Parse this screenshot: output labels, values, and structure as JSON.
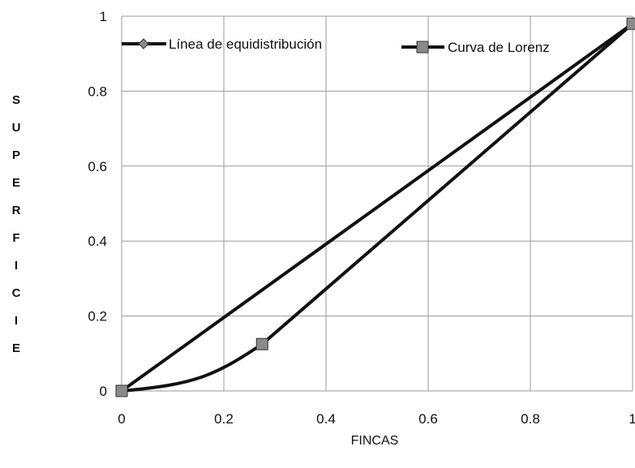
{
  "chart_data": {
    "type": "line",
    "xlabel": "FINCAS",
    "ylabel": "SUPERFICIE",
    "xlim": [
      0,
      1
    ],
    "ylim": [
      0,
      1
    ],
    "x_ticks": [
      "0",
      "0.2",
      "0.4",
      "0.6",
      "0.8",
      "1"
    ],
    "y_ticks": [
      "0",
      "0.2",
      "0.4",
      "0.6",
      "0.8",
      "1"
    ],
    "grid": true,
    "legend_position": "top",
    "series": [
      {
        "name": "Línea de equidistribución",
        "marker": "diamond",
        "color": "#111111",
        "x": [
          0,
          1
        ],
        "y": [
          0,
          0.98
        ]
      },
      {
        "name": "Curva de Lorenz",
        "marker": "square",
        "color": "#111111",
        "x": [
          0,
          0.275,
          1
        ],
        "y": [
          0,
          0.125,
          0.98
        ]
      }
    ]
  }
}
